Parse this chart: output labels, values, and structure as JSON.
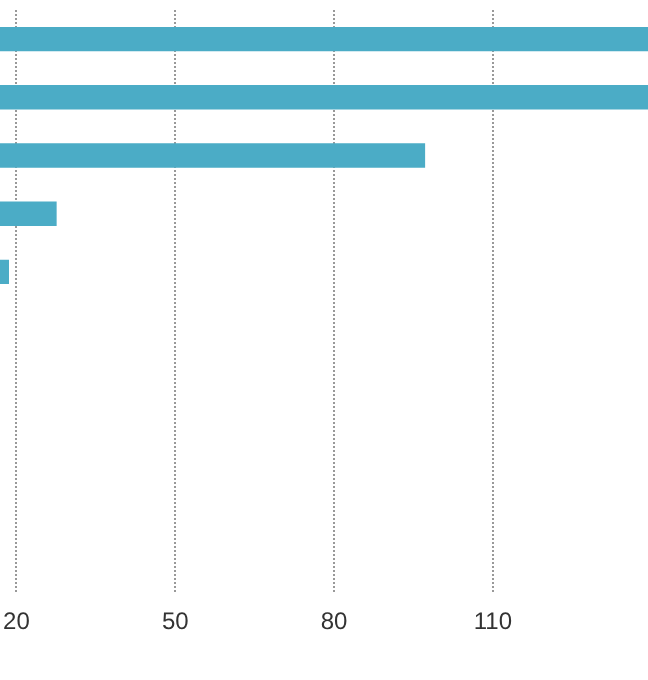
{
  "chart_data": {
    "type": "bar",
    "orientation": "horizontal",
    "categories": [
      null,
      null,
      null,
      null,
      null,
      null,
      null,
      null,
      null,
      null
    ],
    "values": [
      139.3,
      139.3,
      97.2,
      27.6,
      18.6,
      null,
      null,
      null,
      null,
      null
    ],
    "color": "#4bacc6",
    "xlim": [
      16.9,
      139.3
    ],
    "xticks": [
      20,
      50,
      80,
      110
    ],
    "grid": "x"
  }
}
